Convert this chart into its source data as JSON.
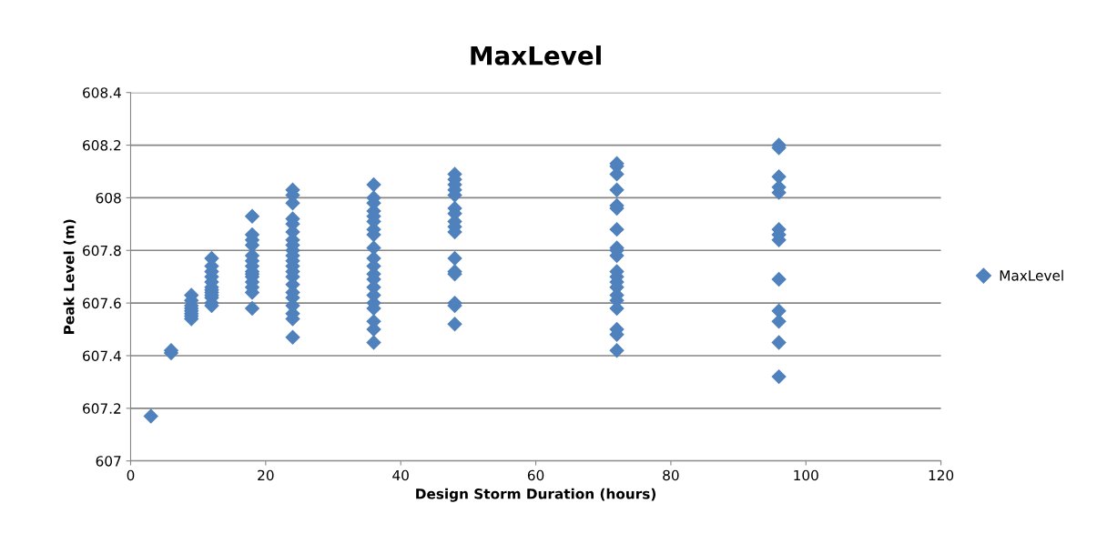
{
  "chart_data": {
    "type": "scatter",
    "title": "MaxLevel",
    "xlabel": "Design Storm Duration (hours)",
    "ylabel": "Peak Level (m)",
    "x": [
      3,
      6,
      6,
      9,
      9,
      9,
      9,
      9,
      9,
      9,
      9,
      12,
      12,
      12,
      12,
      12,
      12,
      12,
      12,
      12,
      12,
      12,
      12,
      18,
      18,
      18,
      18,
      18,
      18,
      18,
      18,
      18,
      18,
      18,
      18,
      18,
      18,
      24,
      24,
      24,
      24,
      24,
      24,
      24,
      24,
      24,
      24,
      24,
      24,
      24,
      24,
      24,
      24,
      24,
      24,
      24,
      24,
      24,
      36,
      36,
      36,
      36,
      36,
      36,
      36,
      36,
      36,
      36,
      36,
      36,
      36,
      36,
      36,
      36,
      36,
      36,
      36,
      36,
      48,
      48,
      48,
      48,
      48,
      48,
      48,
      48,
      48,
      48,
      48,
      48,
      48,
      48,
      48,
      48,
      72,
      72,
      72,
      72,
      72,
      72,
      72,
      72,
      72,
      72,
      72,
      72,
      72,
      72,
      72,
      72,
      72,
      72,
      72,
      72,
      96,
      96,
      96,
      96,
      96,
      96,
      96,
      96,
      96,
      96,
      96,
      96,
      96
    ],
    "series": [
      {
        "name": "MaxLevel",
        "color": "#4f81bd",
        "values": [
          607.17,
          607.41,
          607.42,
          607.63,
          607.61,
          607.59,
          607.58,
          607.57,
          607.56,
          607.55,
          607.54,
          607.77,
          607.74,
          607.72,
          607.7,
          607.68,
          607.66,
          607.65,
          607.64,
          607.63,
          607.62,
          607.6,
          607.59,
          607.93,
          607.86,
          607.84,
          607.82,
          607.78,
          607.76,
          607.74,
          607.72,
          607.71,
          607.7,
          607.68,
          607.66,
          607.64,
          607.58,
          608.03,
          608.01,
          607.98,
          607.92,
          607.9,
          607.87,
          607.84,
          607.82,
          607.8,
          607.78,
          607.76,
          607.74,
          607.72,
          607.7,
          607.67,
          607.64,
          607.62,
          607.59,
          607.56,
          607.54,
          607.47,
          608.05,
          608.0,
          607.98,
          607.95,
          607.93,
          607.91,
          607.88,
          607.86,
          607.81,
          607.77,
          607.74,
          607.71,
          607.69,
          607.66,
          607.63,
          607.6,
          607.58,
          607.53,
          607.5,
          607.45,
          608.09,
          608.07,
          608.05,
          608.03,
          608.01,
          607.96,
          607.94,
          607.91,
          607.89,
          607.87,
          607.77,
          607.72,
          607.71,
          607.6,
          607.59,
          607.52,
          608.13,
          608.12,
          608.09,
          608.03,
          607.97,
          607.96,
          607.88,
          607.81,
          607.8,
          607.78,
          607.72,
          607.7,
          607.68,
          607.66,
          607.63,
          607.61,
          607.58,
          607.5,
          607.48,
          607.42,
          608.2,
          608.19,
          608.08,
          608.04,
          608.02,
          607.88,
          607.86,
          607.84,
          607.69,
          607.57,
          607.53,
          607.45,
          607.32
        ]
      }
    ],
    "xlim": [
      0,
      120
    ],
    "xticks": [
      0,
      20,
      40,
      60,
      80,
      100,
      120
    ],
    "ylim": [
      607,
      608.4
    ],
    "yticks": [
      607,
      607.2,
      607.4,
      607.6,
      607.8,
      608,
      608.2,
      608.4
    ],
    "grid": "y",
    "legend": "right",
    "marker": "diamond"
  }
}
